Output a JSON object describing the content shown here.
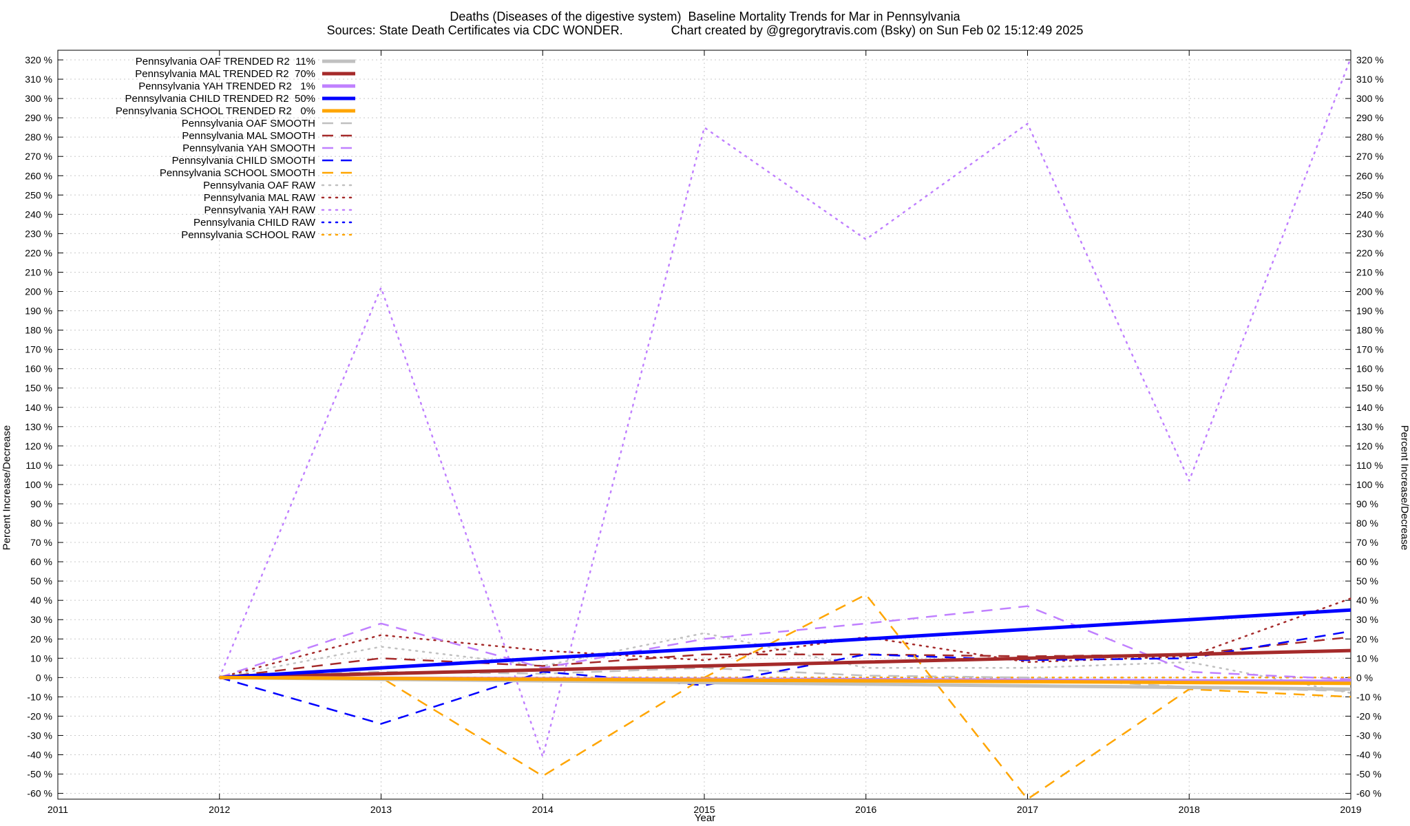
{
  "title": "Deaths (Diseases of the digestive system)  Baseline Mortality Trends for Mar in Pennsylvania",
  "subtitle": "Sources: State Death Certificates via CDC WONDER.              Chart created by @gregorytravis.com (Bsky) on Sun Feb 02 15:12:49 2025",
  "chart_data": {
    "type": "line",
    "title": "Deaths (Diseases of the digestive system)  Baseline Mortality Trends for Mar in Pennsylvania",
    "subtitle": "Sources: State Death Certificates via CDC WONDER.              Chart created by @gregorytravis.com (Bsky) on Sun Feb 02 15:12:49 2025",
    "xlabel": "Year",
    "ylabel": "Percent Increase/Decrease",
    "y2label": "Percent Increase/Decrease",
    "xlim": [
      2011,
      2019
    ],
    "ylim": [
      -60,
      320
    ],
    "x_ticks": [
      "2011",
      "2012",
      "2013",
      "2014",
      "2015",
      "2016",
      "2017",
      "2018",
      "2019"
    ],
    "y_ticks": [
      "-60 %",
      "-50 %",
      "-40 %",
      "-30 %",
      "-20 %",
      "-10 %",
      "0 %",
      "10 %",
      "20 %",
      "30 %",
      "40 %",
      "50 %",
      "60 %",
      "70 %",
      "80 %",
      "90 %",
      "100 %",
      "110 %",
      "120 %",
      "130 %",
      "140 %",
      "150 %",
      "160 %",
      "170 %",
      "180 %",
      "190 %",
      "200 %",
      "210 %",
      "220 %",
      "230 %",
      "240 %",
      "250 %",
      "260 %",
      "270 %",
      "280 %",
      "290 %",
      "300 %",
      "310 %",
      "320 %"
    ],
    "grid": true,
    "legend_position": "top-left",
    "x": [
      2012,
      2013,
      2014,
      2015,
      2016,
      2017,
      2018,
      2019
    ],
    "series": [
      {
        "name": "Pennsylvania OAF TRENDED R2  11%",
        "style": "trend",
        "color": "#c0c0c0",
        "values": [
          0,
          -0.9,
          -1.7,
          -2.6,
          -3.4,
          -4.3,
          -5.1,
          -6.0
        ]
      },
      {
        "name": "Pennsylvania MAL TRENDED R2  70%",
        "style": "trend",
        "color": "#a52a2a",
        "values": [
          0,
          2,
          4,
          6,
          8,
          10,
          12,
          14
        ]
      },
      {
        "name": "Pennsylvania YAH TRENDED R2   1%",
        "style": "trend",
        "color": "#c080ff",
        "values": [
          0,
          -0.3,
          -0.6,
          -0.9,
          -1.1,
          -1.4,
          -1.7,
          -2.0
        ]
      },
      {
        "name": "Pennsylvania CHILD TRENDED R2  50%",
        "style": "trend",
        "color": "#0000ff",
        "values": [
          0,
          5,
          10,
          15,
          20,
          25,
          30,
          35
        ]
      },
      {
        "name": "Pennsylvania SCHOOL TRENDED R2   0%",
        "style": "trend",
        "color": "#ffa500",
        "values": [
          0,
          -0.4,
          -0.9,
          -1.3,
          -1.7,
          -2.1,
          -2.6,
          -3.0
        ]
      },
      {
        "name": "Pennsylvania OAF SMOOTH",
        "style": "smooth",
        "color": "#c0c0c0",
        "values": [
          0,
          3,
          2,
          5,
          1,
          0,
          -5,
          -7
        ]
      },
      {
        "name": "Pennsylvania MAL SMOOTH",
        "style": "smooth",
        "color": "#a52a2a",
        "values": [
          0,
          10,
          6,
          12,
          12,
          11,
          12,
          21
        ]
      },
      {
        "name": "Pennsylvania YAH SMOOTH",
        "style": "smooth",
        "color": "#c080ff",
        "values": [
          0,
          28,
          5,
          20,
          28,
          37,
          3,
          -1
        ]
      },
      {
        "name": "Pennsylvania CHILD SMOOTH",
        "style": "smooth",
        "color": "#0000ff",
        "values": [
          0,
          -24,
          3,
          -4,
          12,
          9,
          10,
          24
        ]
      },
      {
        "name": "Pennsylvania SCHOOL SMOOTH",
        "style": "smooth",
        "color": "#ffa500",
        "values": [
          0,
          0,
          -51,
          0,
          43,
          -63,
          -6,
          -10
        ]
      },
      {
        "name": "Pennsylvania OAF RAW",
        "style": "raw",
        "color": "#c0c0c0",
        "values": [
          0,
          16,
          6,
          23,
          5,
          5,
          8,
          -8
        ]
      },
      {
        "name": "Pennsylvania MAL RAW",
        "style": "raw",
        "color": "#a52a2a",
        "values": [
          0,
          22,
          14,
          9,
          21,
          8,
          11,
          41
        ]
      },
      {
        "name": "Pennsylvania YAH RAW",
        "style": "raw",
        "color": "#c080ff",
        "values": [
          0,
          202,
          -41,
          285,
          227,
          287,
          102,
          321
        ]
      },
      {
        "name": "Pennsylvania CHILD RAW",
        "style": "raw",
        "color": "#0000ff",
        "values": [
          0,
          0,
          0,
          0,
          0,
          0,
          0,
          0
        ]
      },
      {
        "name": "Pennsylvania SCHOOL RAW",
        "style": "raw",
        "color": "#ffa500",
        "values": [
          0,
          0,
          0,
          0,
          0,
          0,
          0,
          0
        ]
      }
    ]
  }
}
